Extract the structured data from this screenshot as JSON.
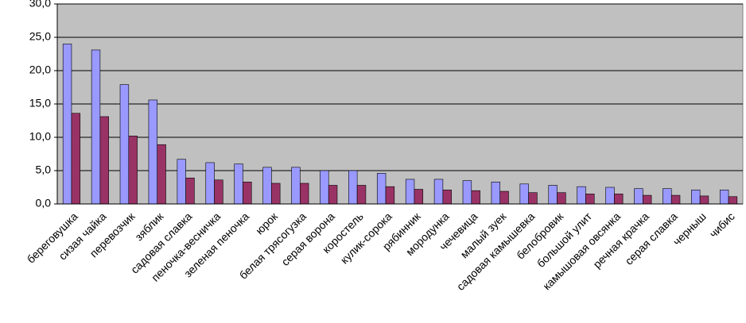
{
  "chart_data": {
    "type": "bar",
    "categories": [
      "береговушка",
      "сизая чайка",
      "перевозчик",
      "зяблик",
      "садовая славка",
      "пеночка-весничка",
      "зеленая пеночка",
      "юрок",
      "белая трясогузка",
      "серая ворона",
      "коростель",
      "кулик-сорока",
      "рябинник",
      "мородунка",
      "чечевица",
      "малый зуек",
      "садовая камышевка",
      "белобровик",
      "большой улит",
      "камышовая овсянка",
      "речная крачка",
      "серая славка",
      "черныш",
      "чибис"
    ],
    "series": [
      {
        "color": "#9999ff",
        "values": [
          24.0,
          23.1,
          17.9,
          15.6,
          6.7,
          6.2,
          6.0,
          5.5,
          5.5,
          5.0,
          5.0,
          4.6,
          3.7,
          3.7,
          3.5,
          3.3,
          3.0,
          2.8,
          2.6,
          2.5,
          2.3,
          2.3,
          2.1,
          2.1
        ]
      },
      {
        "color": "#993366",
        "values": [
          13.6,
          13.1,
          10.2,
          8.9,
          3.9,
          3.6,
          3.3,
          3.1,
          3.1,
          2.8,
          2.8,
          2.6,
          2.2,
          2.1,
          2.0,
          1.9,
          1.7,
          1.7,
          1.5,
          1.5,
          1.3,
          1.3,
          1.2,
          1.1
        ]
      }
    ],
    "ylim": [
      0,
      30
    ],
    "yticks": [
      {
        "value": 0,
        "label": "0,0"
      },
      {
        "value": 5,
        "label": "5,0"
      },
      {
        "value": 10,
        "label": "10,0"
      },
      {
        "value": 15,
        "label": "15,0"
      },
      {
        "value": 20,
        "label": "20,0"
      },
      {
        "value": 25,
        "label": "25,0"
      },
      {
        "value": 30,
        "label": "30,0"
      }
    ],
    "grid": true,
    "background": "#c0c0c0"
  }
}
